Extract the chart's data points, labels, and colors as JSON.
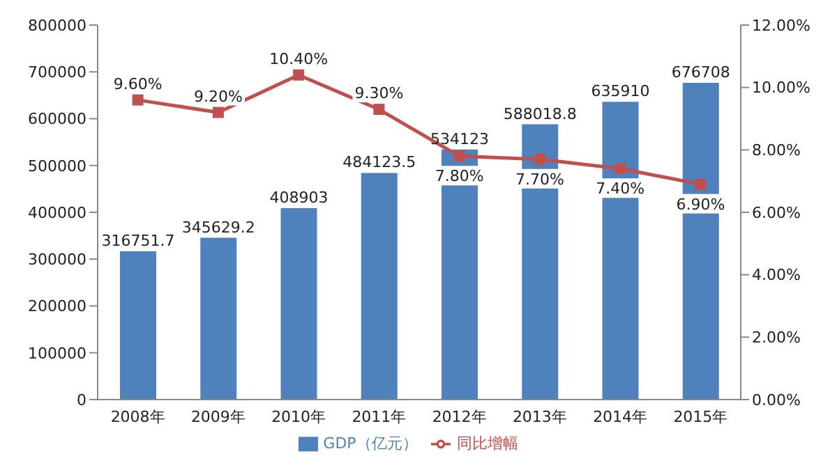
{
  "chart_data": {
    "type": "bar",
    "categories": [
      "2008年",
      "2009年",
      "2010年",
      "2011年",
      "2012年",
      "2013年",
      "2014年",
      "2015年"
    ],
    "series": [
      {
        "name": "GDP（亿元）",
        "color": "#4f81bd",
        "values": [
          316751.7,
          345629.2,
          408903,
          484123.5,
          534123,
          588018.8,
          635910,
          676708
        ],
        "value_labels": [
          "316751.7",
          "345629.2",
          "408903",
          "484123.5",
          "534123",
          "588018.8",
          "635910",
          "676708"
        ]
      },
      {
        "name": "同比增幅",
        "type": "line",
        "axis": "y2",
        "color": "#c0504d",
        "marker": "square",
        "values": [
          9.6,
          9.2,
          10.4,
          9.3,
          7.8,
          7.7,
          7.4,
          6.9
        ],
        "value_labels": [
          "9.60%",
          "9.20%",
          "10.40%",
          "9.30%",
          "7.80%",
          "7.70%",
          "7.40%",
          "6.90%"
        ]
      }
    ],
    "ylim": [
      0,
      800000
    ],
    "yticks": [
      0,
      100000,
      200000,
      300000,
      400000,
      500000,
      600000,
      700000,
      800000
    ],
    "y2lim": [
      0,
      12
    ],
    "y2ticks": [
      {
        "value": 0,
        "label": "0.00%"
      },
      {
        "value": 2,
        "label": "2.00%"
      },
      {
        "value": 4,
        "label": "4.00%"
      },
      {
        "value": 6,
        "label": "6.00%"
      },
      {
        "value": 8,
        "label": "8.00%"
      },
      {
        "value": 10,
        "label": "10.00%"
      },
      {
        "value": 12,
        "label": "12.00%"
      }
    ],
    "legend": "bottom"
  }
}
